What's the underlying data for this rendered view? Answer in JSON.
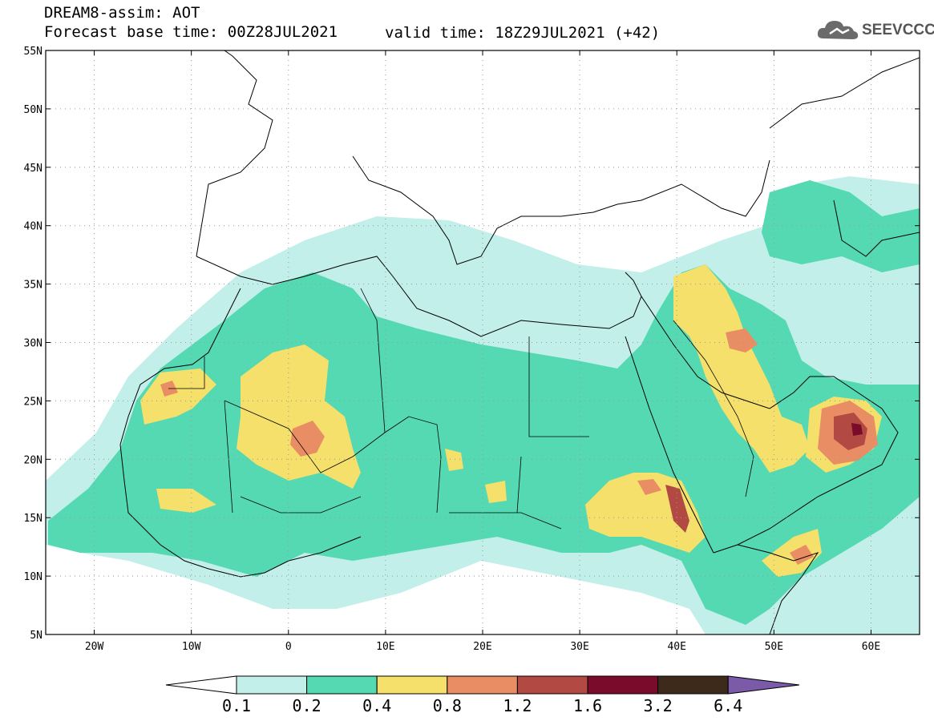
{
  "header": {
    "line1": "DREAM8-assim: AOT",
    "line2_base": "Forecast base time: 00Z28JUL2021",
    "line2_valid": "valid time: 18Z29JUL2021 (+42)"
  },
  "logo": {
    "text": "SEEVCCC",
    "icon": "cloud-icon"
  },
  "map": {
    "lon_range": [
      -25,
      65
    ],
    "lat_range": [
      5,
      55
    ],
    "grid": true,
    "lat_ticks": [
      {
        "value": 55,
        "label": "55N"
      },
      {
        "value": 50,
        "label": "50N"
      },
      {
        "value": 45,
        "label": "45N"
      },
      {
        "value": 40,
        "label": "40N"
      },
      {
        "value": 35,
        "label": "35N"
      },
      {
        "value": 30,
        "label": "30N"
      },
      {
        "value": 25,
        "label": "25N"
      },
      {
        "value": 20,
        "label": "20N"
      },
      {
        "value": 15,
        "label": "15N"
      },
      {
        "value": 10,
        "label": "10N"
      },
      {
        "value": 5,
        "label": "5N"
      }
    ],
    "lon_ticks": [
      {
        "value": -20,
        "label": "20W"
      },
      {
        "value": -10,
        "label": "10W"
      },
      {
        "value": 0,
        "label": "0"
      },
      {
        "value": 10,
        "label": "10E"
      },
      {
        "value": 20,
        "label": "20E"
      },
      {
        "value": 30,
        "label": "30E"
      },
      {
        "value": 40,
        "label": "40E"
      },
      {
        "value": 50,
        "label": "50E"
      },
      {
        "value": 60,
        "label": "60E"
      }
    ]
  },
  "colorbar": {
    "under_color": "#ffffff",
    "over_color": "#7b5aa8",
    "bins": [
      {
        "color": "#c2efe9"
      },
      {
        "color": "#55d9b2"
      },
      {
        "color": "#f4e06a"
      },
      {
        "color": "#e98d64"
      },
      {
        "color": "#b24a43"
      },
      {
        "color": "#7a0b2a"
      },
      {
        "color": "#3d2a1a"
      }
    ],
    "labels": [
      "0.1",
      "0.2",
      "0.4",
      "0.8",
      "1.2",
      "1.6",
      "3.2",
      "6.4"
    ]
  }
}
